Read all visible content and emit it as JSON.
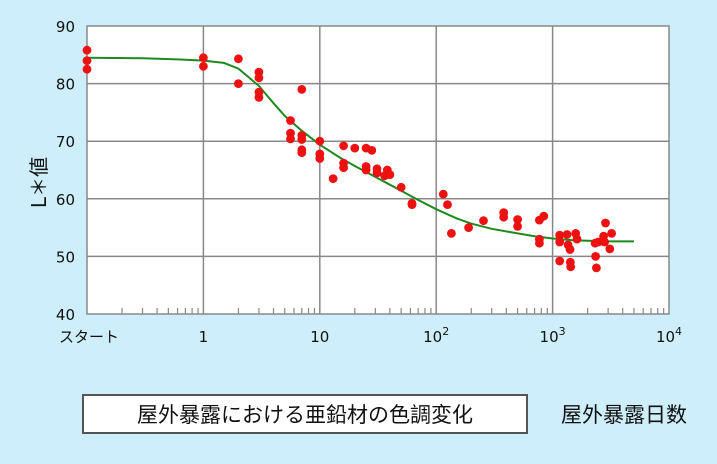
{
  "caption": "屋外暴露における亜鉛材の色調変化",
  "chart_data": {
    "type": "scatter",
    "title": "",
    "xlabel": "屋外暴露日数",
    "ylabel": "L＊値",
    "x_scale": "log",
    "xlim": [
      0.1,
      10000
    ],
    "ylim": [
      40,
      90
    ],
    "y_ticks": [
      40,
      50,
      60,
      70,
      80,
      90
    ],
    "x_ticks": [
      {
        "value": 0.1,
        "label": "スタート",
        "exp": ""
      },
      {
        "value": 1,
        "label": "1",
        "exp": ""
      },
      {
        "value": 10,
        "label": "10",
        "exp": ""
      },
      {
        "value": 100,
        "label": "10",
        "exp": "2"
      },
      {
        "value": 1000,
        "label": "10",
        "exp": "3"
      },
      {
        "value": 10000,
        "label": "10",
        "exp": "4"
      }
    ],
    "grid": true,
    "colors": {
      "points": "#ee1111",
      "fit": "#1e8a1e",
      "grid": "#888888"
    },
    "series": [
      {
        "kind": "points",
        "x": [
          0.1,
          0.1,
          0.1,
          1,
          1,
          2,
          2,
          3,
          3,
          3,
          3,
          5.6,
          5.6,
          5.6,
          7,
          7,
          7,
          7,
          7,
          10,
          10,
          10,
          13,
          16,
          16,
          16,
          20,
          25,
          25,
          25,
          28,
          31,
          31,
          36,
          38,
          40,
          50,
          62,
          62,
          115,
          125,
          135,
          190,
          255,
          380,
          380,
          500,
          500,
          770,
          770,
          770,
          840,
          1150,
          1150,
          1150,
          1330,
          1360,
          1410,
          1420,
          1430,
          1580,
          1620,
          2320,
          2340,
          2380,
          2470,
          2740,
          2800,
          2850,
          3100,
          3210
        ],
        "y": [
          85.8,
          84,
          82.5,
          84.5,
          83,
          84.3,
          80,
          82,
          81,
          78.5,
          77.6,
          73.6,
          71.4,
          70.4,
          71,
          70.3,
          68.5,
          68,
          79,
          70,
          67.8,
          67,
          63.5,
          69.2,
          66.2,
          65.4,
          68.8,
          68.8,
          65.6,
          65,
          68.4,
          65.2,
          64.5,
          64,
          65,
          64.2,
          62,
          59.2,
          59,
          60.8,
          59,
          54,
          55,
          56.2,
          57.6,
          56.8,
          56.4,
          55.2,
          56.3,
          53,
          52.3,
          57,
          53.7,
          52.5,
          49.2,
          53.8,
          52,
          51.2,
          49,
          48.2,
          54,
          53,
          52.3,
          50,
          48,
          52.5,
          53.5,
          52.5,
          55.8,
          51.3,
          54
        ]
      },
      {
        "kind": "fit",
        "x": [
          0.1,
          0.3,
          0.6,
          1,
          1.5,
          2,
          3,
          4,
          5,
          7,
          10,
          15,
          20,
          30,
          50,
          70,
          100,
          150,
          200,
          300,
          500,
          700,
          1000,
          1500,
          2000,
          3000,
          5000
        ],
        "y": [
          84.5,
          84.4,
          84.2,
          84,
          83.6,
          82.6,
          79.6,
          76.6,
          74.4,
          71.8,
          69.4,
          67.1,
          65.7,
          63.8,
          61.4,
          59.8,
          58.2,
          56.6,
          55.7,
          54.8,
          54,
          53.5,
          53.1,
          52.8,
          52.7,
          52.6,
          52.6
        ]
      }
    ]
  }
}
